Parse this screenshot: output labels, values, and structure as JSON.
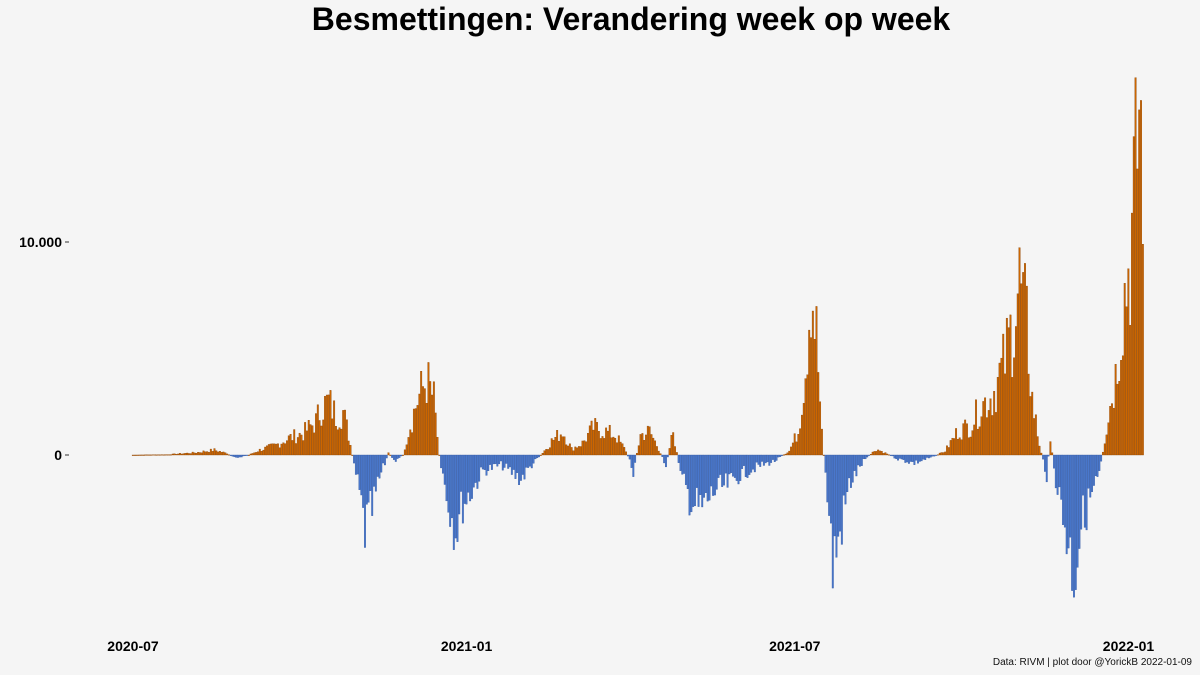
{
  "title": "Besmettingen: Verandering week op week",
  "caption": "Data: RIVM | plot door @YorickB  2022-01-09",
  "chart_data": {
    "type": "bar",
    "title": "Besmettingen: Verandering week op week",
    "xlabel": "",
    "ylabel": "",
    "x_start": "2020-07-01",
    "x_end": "2022-01-09",
    "x_ticks": [
      {
        "date": "2020-07-01",
        "label": "2020-07"
      },
      {
        "date": "2021-01-01",
        "label": "2021-01"
      },
      {
        "date": "2021-07-01",
        "label": "2021-07"
      },
      {
        "date": "2022-01-01",
        "label": "2022-01"
      }
    ],
    "y_ticks": [
      {
        "value": 0,
        "label": "0"
      },
      {
        "value": 10000,
        "label": "10.000"
      }
    ],
    "ylim": [
      -8400,
      18500
    ],
    "grid": false,
    "legend": "none",
    "colors": {
      "positive": "#cc6600",
      "negative": "#4a78cc",
      "positive_edge": "#8a4200",
      "negative_edge": "#2e55a0"
    },
    "series_description": "daily week-over-week change in infections, estimated from the chart shape",
    "anchors": [
      [
        "2020-07-01",
        0
      ],
      [
        "2020-07-20",
        20
      ],
      [
        "2020-08-05",
        120
      ],
      [
        "2020-08-15",
        250
      ],
      [
        "2020-08-22",
        80
      ],
      [
        "2020-08-26",
        -150
      ],
      [
        "2020-09-03",
        0
      ],
      [
        "2020-09-09",
        250
      ],
      [
        "2020-09-18",
        500
      ],
      [
        "2020-09-25",
        850
      ],
      [
        "2020-10-03",
        1100
      ],
      [
        "2020-10-10",
        1700
      ],
      [
        "2020-10-13",
        2400
      ],
      [
        "2020-10-17",
        2700
      ],
      [
        "2020-10-21",
        2000
      ],
      [
        "2020-10-25",
        2200
      ],
      [
        "2020-10-28",
        1000
      ],
      [
        "2020-10-31",
        -500
      ],
      [
        "2020-11-03",
        -2000
      ],
      [
        "2020-11-06",
        -3800
      ],
      [
        "2020-11-10",
        -2800
      ],
      [
        "2020-11-14",
        -1200
      ],
      [
        "2020-11-19",
        100
      ],
      [
        "2020-11-23",
        -300
      ],
      [
        "2020-11-27",
        0
      ],
      [
        "2020-11-30",
        1200
      ],
      [
        "2020-12-05",
        2800
      ],
      [
        "2020-12-10",
        3800
      ],
      [
        "2020-12-14",
        2800
      ],
      [
        "2020-12-17",
        0
      ],
      [
        "2020-12-21",
        -2000
      ],
      [
        "2020-12-26",
        -3800
      ],
      [
        "2020-12-30",
        -2500
      ],
      [
        "2021-01-04",
        -1800
      ],
      [
        "2021-01-10",
        -800
      ],
      [
        "2021-01-20",
        -500
      ],
      [
        "2021-01-31",
        -1200
      ],
      [
        "2021-02-06",
        -500
      ],
      [
        "2021-02-12",
        100
      ],
      [
        "2021-02-17",
        700
      ],
      [
        "2021-02-23",
        1200
      ],
      [
        "2021-02-28",
        300
      ],
      [
        "2021-03-06",
        600
      ],
      [
        "2021-03-12",
        1400
      ],
      [
        "2021-03-18",
        1200
      ],
      [
        "2021-03-24",
        1000
      ],
      [
        "2021-03-30",
        200
      ],
      [
        "2021-04-03",
        -800
      ],
      [
        "2021-04-07",
        1000
      ],
      [
        "2021-04-12",
        1200
      ],
      [
        "2021-04-17",
        300
      ],
      [
        "2021-04-21",
        -500
      ],
      [
        "2021-04-25",
        1200
      ],
      [
        "2021-04-29",
        -1000
      ],
      [
        "2021-05-04",
        -2200
      ],
      [
        "2021-05-10",
        -2800
      ],
      [
        "2021-05-18",
        -1800
      ],
      [
        "2021-05-25",
        -1500
      ],
      [
        "2021-06-01",
        -1000
      ],
      [
        "2021-06-10",
        -600
      ],
      [
        "2021-06-20",
        -300
      ],
      [
        "2021-06-28",
        200
      ],
      [
        "2021-07-03",
        1200
      ],
      [
        "2021-07-07",
        4500
      ],
      [
        "2021-07-10",
        8800
      ],
      [
        "2021-07-13",
        6000
      ],
      [
        "2021-07-16",
        1000
      ],
      [
        "2021-07-19",
        -2000
      ],
      [
        "2021-07-22",
        -5500
      ],
      [
        "2021-07-26",
        -4000
      ],
      [
        "2021-07-31",
        -1500
      ],
      [
        "2021-08-08",
        -300
      ],
      [
        "2021-08-15",
        300
      ],
      [
        "2021-08-20",
        100
      ],
      [
        "2021-08-27",
        -200
      ],
      [
        "2021-09-05",
        -400
      ],
      [
        "2021-09-15",
        -100
      ],
      [
        "2021-09-22",
        200
      ],
      [
        "2021-09-29",
        1200
      ],
      [
        "2021-10-06",
        1500
      ],
      [
        "2021-10-12",
        2500
      ],
      [
        "2021-10-18",
        3000
      ],
      [
        "2021-10-24",
        4500
      ],
      [
        "2021-10-29",
        6500
      ],
      [
        "2021-11-02",
        8700
      ],
      [
        "2021-11-06",
        6500
      ],
      [
        "2021-11-09",
        2800
      ],
      [
        "2021-11-13",
        500
      ],
      [
        "2021-11-17",
        -1000
      ],
      [
        "2021-11-19",
        800
      ],
      [
        "2021-11-22",
        -1200
      ],
      [
        "2021-11-27",
        -3500
      ],
      [
        "2021-12-02",
        -6000
      ],
      [
        "2021-12-06",
        -3500
      ],
      [
        "2021-12-11",
        -2200
      ],
      [
        "2021-12-16",
        -1000
      ],
      [
        "2021-12-21",
        2000
      ],
      [
        "2021-12-25",
        4000
      ],
      [
        "2021-12-29",
        7500
      ],
      [
        "2022-01-02",
        10000
      ],
      [
        "2022-01-05",
        14000
      ],
      [
        "2022-01-07",
        17500
      ],
      [
        "2022-01-09",
        15000
      ]
    ]
  }
}
